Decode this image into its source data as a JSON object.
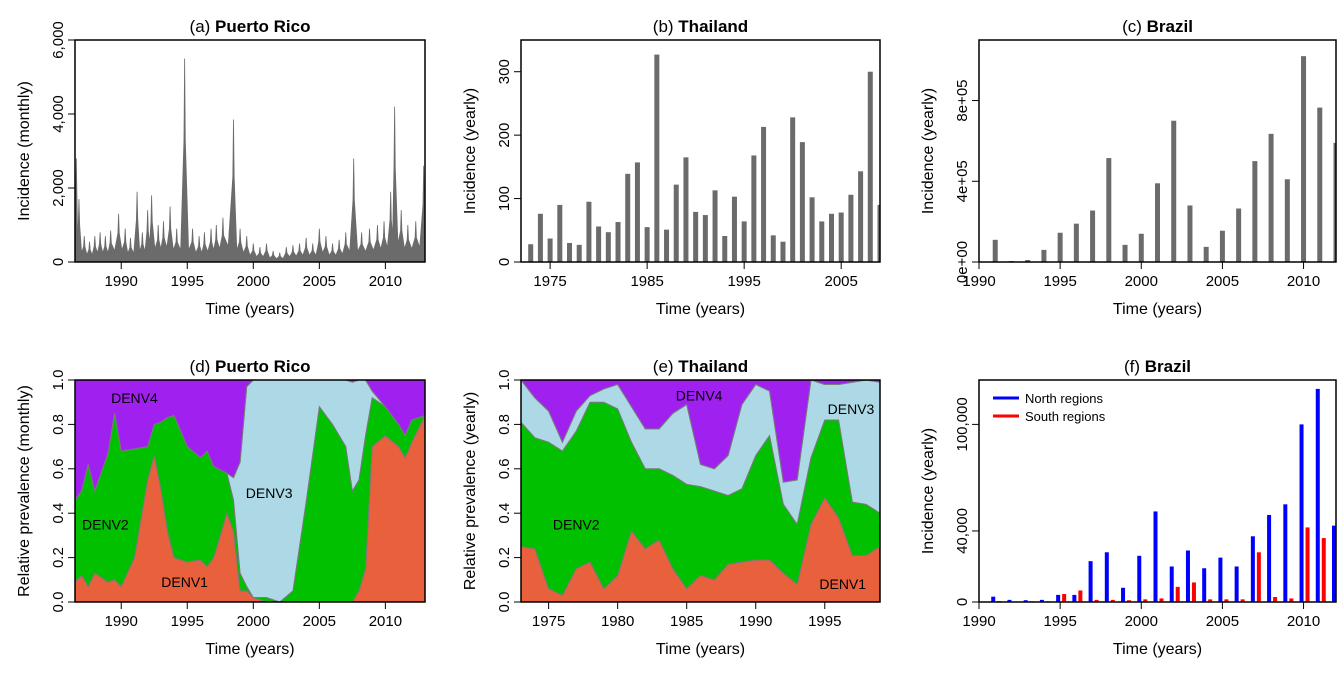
{
  "chart_data": [
    {
      "id": "a",
      "type": "bar",
      "title_prefix": "(a) ",
      "title_bold": "Puerto Rico",
      "xlabel": "Time (years)",
      "ylabel": "Incidence (monthly)",
      "xlim": [
        1986.5,
        2013
      ],
      "ylim": [
        0,
        6000
      ],
      "xticks": [
        1990,
        1995,
        2000,
        2005,
        2010
      ],
      "yticks": [
        0,
        2000,
        4000,
        6000
      ],
      "ytick_labels": [
        "0",
        "2,000",
        "4,000",
        "6,000"
      ],
      "color": "#6b6b6b",
      "series_note_free": true,
      "peaks": [
        {
          "t": 1986.6,
          "v": 2800
        },
        {
          "t": 1986.8,
          "v": 1700
        },
        {
          "t": 1987.2,
          "v": 700
        },
        {
          "t": 1987.6,
          "v": 550
        },
        {
          "t": 1988.0,
          "v": 700
        },
        {
          "t": 1988.4,
          "v": 800
        },
        {
          "t": 1988.8,
          "v": 700
        },
        {
          "t": 1989.2,
          "v": 850
        },
        {
          "t": 1989.8,
          "v": 1300
        },
        {
          "t": 1990.3,
          "v": 900
        },
        {
          "t": 1990.7,
          "v": 650
        },
        {
          "t": 1991.2,
          "v": 1900
        },
        {
          "t": 1991.6,
          "v": 800
        },
        {
          "t": 1992.0,
          "v": 1400
        },
        {
          "t": 1992.3,
          "v": 1800
        },
        {
          "t": 1992.8,
          "v": 1000
        },
        {
          "t": 1993.2,
          "v": 1100
        },
        {
          "t": 1993.7,
          "v": 1500
        },
        {
          "t": 1994.2,
          "v": 900
        },
        {
          "t": 1994.8,
          "v": 5500
        },
        {
          "t": 1995.4,
          "v": 900
        },
        {
          "t": 1995.9,
          "v": 700
        },
        {
          "t": 1996.3,
          "v": 800
        },
        {
          "t": 1996.8,
          "v": 900
        },
        {
          "t": 1997.2,
          "v": 1000
        },
        {
          "t": 1997.7,
          "v": 1200
        },
        {
          "t": 1998.5,
          "v": 3850
        },
        {
          "t": 1999.0,
          "v": 900
        },
        {
          "t": 1999.5,
          "v": 700
        },
        {
          "t": 2000.0,
          "v": 500
        },
        {
          "t": 2000.5,
          "v": 400
        },
        {
          "t": 2001.0,
          "v": 500
        },
        {
          "t": 2001.5,
          "v": 300
        },
        {
          "t": 2002.0,
          "v": 250
        },
        {
          "t": 2002.5,
          "v": 400
        },
        {
          "t": 2003.0,
          "v": 450
        },
        {
          "t": 2003.5,
          "v": 500
        },
        {
          "t": 2004.0,
          "v": 650
        },
        {
          "t": 2004.5,
          "v": 500
        },
        {
          "t": 2005.0,
          "v": 900
        },
        {
          "t": 2005.5,
          "v": 700
        },
        {
          "t": 2006.0,
          "v": 500
        },
        {
          "t": 2006.5,
          "v": 600
        },
        {
          "t": 2007.0,
          "v": 800
        },
        {
          "t": 2007.6,
          "v": 2800
        },
        {
          "t": 2008.2,
          "v": 800
        },
        {
          "t": 2008.8,
          "v": 900
        },
        {
          "t": 2009.4,
          "v": 1000
        },
        {
          "t": 2009.9,
          "v": 1100
        },
        {
          "t": 2010.4,
          "v": 1900
        },
        {
          "t": 2010.7,
          "v": 4200
        },
        {
          "t": 2011.2,
          "v": 1400
        },
        {
          "t": 2011.7,
          "v": 1000
        },
        {
          "t": 2012.3,
          "v": 1100
        },
        {
          "t": 2012.9,
          "v": 2600
        }
      ]
    },
    {
      "id": "b",
      "type": "bar",
      "title_prefix": "(b) ",
      "title_bold": "Thailand",
      "xlabel": "Time (years)",
      "ylabel": "Incidence (yearly)",
      "xlim": [
        1972,
        2009
      ],
      "ylim": [
        0,
        350
      ],
      "xticks": [
        1975,
        1985,
        1995,
        2005
      ],
      "yticks": [
        0,
        100,
        200,
        300
      ],
      "ytick_labels": [
        "0",
        "100",
        "200",
        "300"
      ],
      "color": "#6b6b6b",
      "x": [
        1973,
        1974,
        1975,
        1976,
        1977,
        1978,
        1979,
        1980,
        1981,
        1982,
        1983,
        1984,
        1985,
        1986,
        1987,
        1988,
        1989,
        1990,
        1991,
        1992,
        1993,
        1994,
        1995,
        1996,
        1997,
        1998,
        1999,
        2000,
        2001,
        2002,
        2003,
        2004,
        2005,
        2006,
        2007,
        2008,
        2009
      ],
      "values": [
        28,
        76,
        37,
        90,
        30,
        27,
        95,
        56,
        47,
        63,
        139,
        157,
        55,
        327,
        51,
        122,
        165,
        79,
        74,
        113,
        41,
        103,
        64,
        168,
        213,
        42,
        32,
        228,
        189,
        102,
        64,
        76,
        78,
        106,
        143,
        300,
        90
      ]
    },
    {
      "id": "c",
      "type": "bar",
      "title_prefix": "(c) ",
      "title_bold": "Brazil",
      "xlabel": "Time (years)",
      "ylabel": "Incidence (yearly)",
      "xlim": [
        1990,
        2012
      ],
      "ylim": [
        0,
        1100000
      ],
      "xticks": [
        1990,
        1995,
        2000,
        2005,
        2010
      ],
      "yticks": [
        0,
        400000,
        800000
      ],
      "ytick_labels": [
        "0e+00",
        "4e+05",
        "8e+05"
      ],
      "color": "#6b6b6b",
      "x": [
        1991,
        1992,
        1993,
        1994,
        1995,
        1996,
        1997,
        1998,
        1999,
        2000,
        2001,
        2002,
        2003,
        2004,
        2005,
        2006,
        2007,
        2008,
        2009,
        2010,
        2011,
        2012
      ],
      "values": [
        110000,
        5000,
        10000,
        60000,
        145000,
        190000,
        255000,
        515000,
        85000,
        140000,
        390000,
        700000,
        280000,
        75000,
        155000,
        265000,
        500000,
        635000,
        410000,
        1020000,
        765000,
        590000
      ]
    },
    {
      "id": "d",
      "type": "area",
      "stacked": true,
      "title_prefix": "(d) ",
      "title_bold": "Puerto Rico",
      "xlabel": "Time (years)",
      "ylabel": "Relative prevalence (monthly)",
      "xlim": [
        1986.5,
        2013
      ],
      "ylim": [
        0,
        1
      ],
      "xticks": [
        1990,
        1995,
        2000,
        2005,
        2010
      ],
      "yticks": [
        0,
        0.2,
        0.4,
        0.6,
        0.8,
        1.0
      ],
      "ytick_labels": [
        "0.0",
        "0.2",
        "0.4",
        "0.6",
        "0.8",
        "1.0"
      ],
      "x": [
        1986.5,
        1987,
        1987.5,
        1988,
        1989,
        1989.5,
        1990,
        1991,
        1992,
        1992.5,
        1993,
        1993.5,
        1994,
        1995,
        1996,
        1996.5,
        1997,
        1998,
        1998.5,
        1999,
        1999.5,
        2000,
        2001,
        2002,
        2003,
        2004,
        2005,
        2006,
        2007,
        2007.5,
        2008,
        2008.5,
        2009,
        2010,
        2011,
        2011.5,
        2012,
        2013
      ],
      "series": [
        {
          "name": "DENV1",
          "color": "#e8603c",
          "values": [
            0.09,
            0.12,
            0.07,
            0.13,
            0.09,
            0.1,
            0.07,
            0.2,
            0.55,
            0.66,
            0.51,
            0.32,
            0.2,
            0.18,
            0.19,
            0.16,
            0.2,
            0.4,
            0.32,
            0.05,
            0.05,
            0.02,
            0.0,
            0.0,
            0.0,
            0.0,
            0.0,
            0.0,
            0.0,
            0.0,
            0.05,
            0.15,
            0.7,
            0.75,
            0.7,
            0.65,
            0.72,
            0.84
          ]
        },
        {
          "name": "DENV2",
          "color": "#00c000",
          "values": [
            0.37,
            0.38,
            0.55,
            0.37,
            0.58,
            0.75,
            0.61,
            0.49,
            0.15,
            0.14,
            0.3,
            0.51,
            0.64,
            0.52,
            0.46,
            0.52,
            0.41,
            0.18,
            0.14,
            0.08,
            0.02,
            0.0,
            0.02,
            0.0,
            0.05,
            0.45,
            0.88,
            0.8,
            0.7,
            0.5,
            0.5,
            0.6,
            0.22,
            0.13,
            0.1,
            0.1,
            0.1,
            0.0
          ]
        },
        {
          "name": "DENV3",
          "color": "#add8e6",
          "values": [
            0.0,
            0.0,
            0.0,
            0.0,
            0.0,
            0.0,
            0.0,
            0.0,
            0.0,
            0.0,
            0.0,
            0.0,
            0.0,
            0.0,
            0.0,
            0.0,
            0.0,
            0.0,
            0.1,
            0.5,
            0.9,
            0.98,
            0.98,
            1.0,
            0.95,
            0.55,
            0.12,
            0.2,
            0.3,
            0.49,
            0.45,
            0.25,
            0.03,
            0.0,
            0.0,
            0.0,
            0.0,
            0.0
          ]
        },
        {
          "name": "DENV4",
          "color": "#a020f0",
          "values": [
            0.54,
            0.5,
            0.38,
            0.5,
            0.33,
            0.15,
            0.32,
            0.31,
            0.3,
            0.2,
            0.19,
            0.17,
            0.16,
            0.3,
            0.35,
            0.32,
            0.39,
            0.42,
            0.44,
            0.37,
            0.03,
            0.0,
            0.0,
            0.0,
            0.0,
            0.0,
            0.0,
            0.0,
            0.0,
            0.01,
            0.0,
            0.0,
            0.05,
            0.12,
            0.2,
            0.25,
            0.18,
            0.16
          ]
        }
      ]
    },
    {
      "id": "e",
      "type": "area",
      "stacked": true,
      "title_prefix": "(e) ",
      "title_bold": "Thailand",
      "xlabel": "Time (years)",
      "ylabel": "Relative prevalence (yearly)",
      "xlim": [
        1973,
        1999
      ],
      "ylim": [
        0,
        1
      ],
      "xticks": [
        1975,
        1980,
        1985,
        1990,
        1995
      ],
      "yticks": [
        0,
        0.2,
        0.4,
        0.6,
        0.8,
        1.0
      ],
      "ytick_labels": [
        "0.0",
        "0.2",
        "0.4",
        "0.6",
        "0.8",
        "1.0"
      ],
      "x": [
        1973,
        1974,
        1975,
        1976,
        1977,
        1978,
        1979,
        1980,
        1981,
        1982,
        1983,
        1984,
        1985,
        1986,
        1987,
        1988,
        1989,
        1990,
        1991,
        1992,
        1993,
        1994,
        1995,
        1996,
        1997,
        1998,
        1999
      ],
      "series": [
        {
          "name": "DENV1",
          "color": "#e8603c",
          "values": [
            0.25,
            0.24,
            0.06,
            0.03,
            0.15,
            0.18,
            0.06,
            0.12,
            0.32,
            0.24,
            0.28,
            0.15,
            0.06,
            0.12,
            0.1,
            0.17,
            0.18,
            0.19,
            0.19,
            0.13,
            0.08,
            0.35,
            0.47,
            0.38,
            0.21,
            0.21,
            0.25
          ]
        },
        {
          "name": "DENV2",
          "color": "#00c000",
          "values": [
            0.56,
            0.5,
            0.66,
            0.65,
            0.62,
            0.72,
            0.84,
            0.75,
            0.4,
            0.36,
            0.32,
            0.42,
            0.47,
            0.4,
            0.4,
            0.31,
            0.33,
            0.47,
            0.56,
            0.31,
            0.27,
            0.3,
            0.35,
            0.44,
            0.24,
            0.23,
            0.15
          ]
        },
        {
          "name": "DENV3",
          "color": "#add8e6",
          "values": [
            0.19,
            0.18,
            0.14,
            0.04,
            0.09,
            0.03,
            0.06,
            0.11,
            0.16,
            0.18,
            0.18,
            0.28,
            0.36,
            0.1,
            0.1,
            0.18,
            0.38,
            0.32,
            0.2,
            0.1,
            0.2,
            0.35,
            0.16,
            0.16,
            0.54,
            0.56,
            0.59
          ]
        },
        {
          "name": "DENV4",
          "color": "#a020f0",
          "values": [
            0.0,
            0.08,
            0.14,
            0.28,
            0.14,
            0.07,
            0.04,
            0.02,
            0.12,
            0.22,
            0.22,
            0.15,
            0.11,
            0.38,
            0.4,
            0.34,
            0.11,
            0.02,
            0.05,
            0.46,
            0.45,
            0.0,
            0.02,
            0.02,
            0.01,
            0.0,
            0.01
          ]
        }
      ]
    },
    {
      "id": "f",
      "type": "bar",
      "grouped": true,
      "title_prefix": "(f) ",
      "title_bold": "Brazil",
      "xlabel": "Time (years)",
      "ylabel": "Incidence (yearly)",
      "xlim": [
        1990,
        2012
      ],
      "ylim": [
        0,
        125000
      ],
      "xticks": [
        1990,
        1995,
        2000,
        2005,
        2010
      ],
      "yticks": [
        0,
        40000,
        100000
      ],
      "ytick_labels": [
        "0",
        "40,000",
        "100,000"
      ],
      "legend_position": "top-left",
      "x": [
        1991,
        1992,
        1993,
        1994,
        1995,
        1996,
        1997,
        1998,
        1999,
        2000,
        2001,
        2002,
        2003,
        2004,
        2005,
        2006,
        2007,
        2008,
        2009,
        2010,
        2011,
        2012
      ],
      "series": [
        {
          "name": "North regions",
          "color": "#0000ff",
          "values": [
            3000,
            1200,
            1000,
            1200,
            4000,
            4000,
            23000,
            28000,
            8000,
            26000,
            51000,
            20000,
            29000,
            19000,
            25000,
            20000,
            37000,
            49000,
            55000,
            100000,
            120000,
            43000
          ]
        },
        {
          "name": "South regions",
          "color": "#ff0000",
          "values": [
            500,
            300,
            400,
            400,
            4500,
            6500,
            1200,
            1200,
            1000,
            1500,
            2000,
            8500,
            11000,
            1500,
            1500,
            1500,
            28000,
            2800,
            2000,
            42000,
            36000,
            1000
          ]
        }
      ]
    }
  ]
}
